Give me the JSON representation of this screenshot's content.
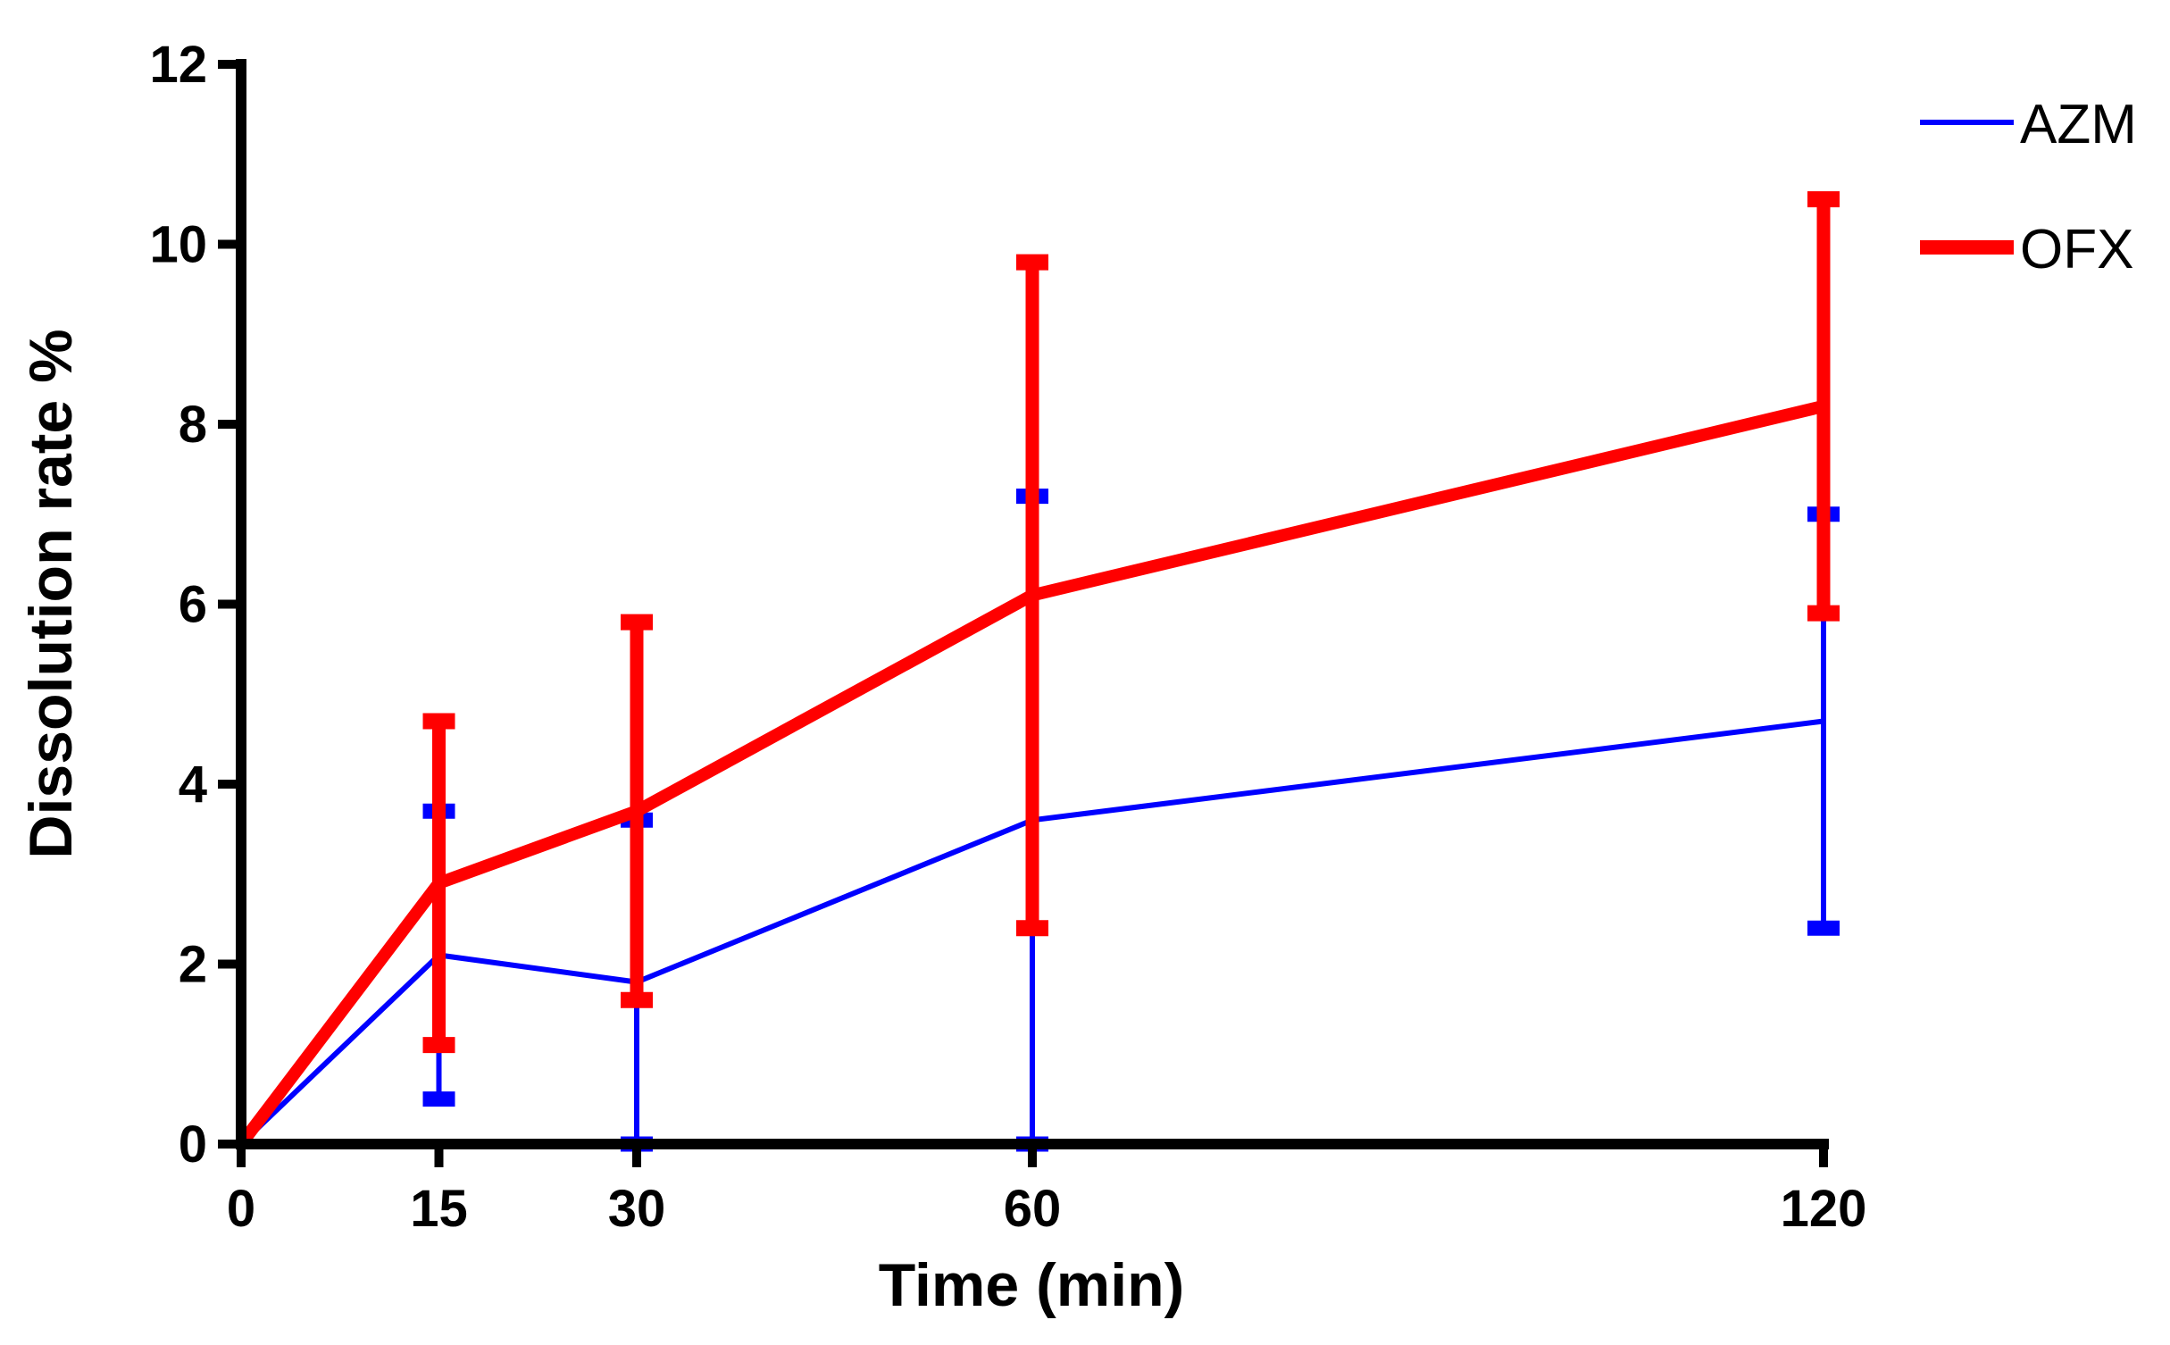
{
  "chart_data": {
    "type": "line",
    "title": "",
    "xlabel": "Time (min)",
    "ylabel": "Dissolution rate %",
    "xlim": [
      0,
      120
    ],
    "ylim": [
      0,
      12
    ],
    "x": [
      0,
      15,
      30,
      60,
      120
    ],
    "x_ticks": [
      "0",
      "15",
      "30",
      "60",
      "120"
    ],
    "y_ticks": [
      "0",
      "2",
      "4",
      "6",
      "8",
      "10",
      "12"
    ],
    "grid": false,
    "legend_position": "top-right",
    "series": [
      {
        "name": "AZM",
        "color": "#0000ff",
        "values": [
          0,
          2.1,
          1.8,
          3.6,
          4.7
        ],
        "error_low": [
          null,
          0.5,
          0.0,
          0.0,
          2.4
        ],
        "error_high": [
          null,
          3.7,
          3.6,
          7.2,
          7.0
        ]
      },
      {
        "name": "OFX",
        "color": "#ff0000",
        "values": [
          0,
          2.9,
          3.7,
          6.1,
          8.2
        ],
        "error_low": [
          null,
          1.1,
          1.6,
          2.4,
          5.9
        ],
        "error_high": [
          null,
          4.7,
          5.8,
          9.8,
          10.5
        ]
      }
    ]
  }
}
